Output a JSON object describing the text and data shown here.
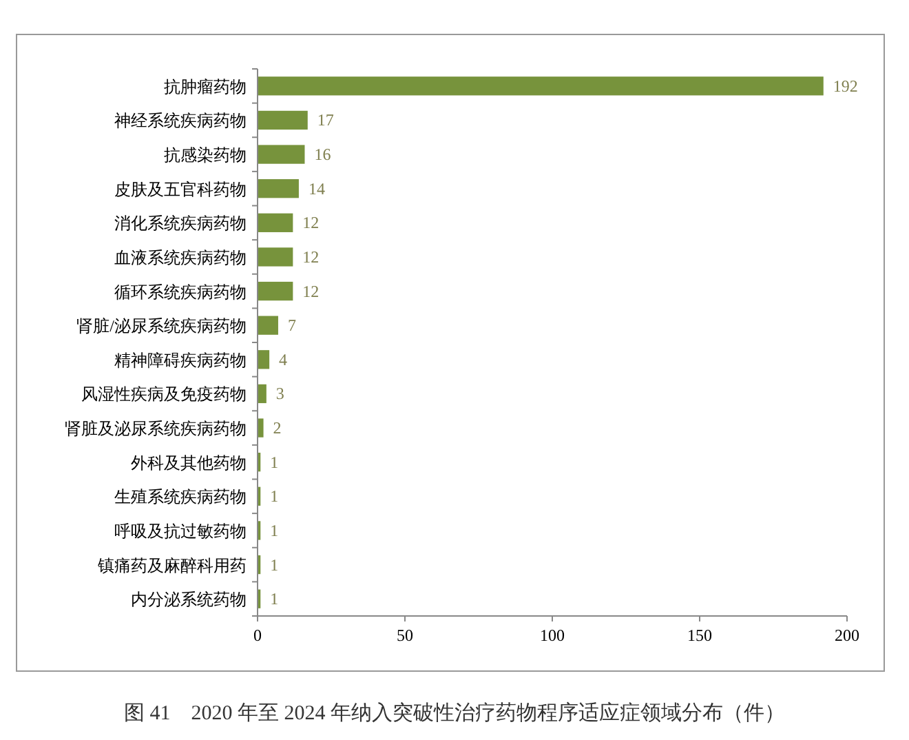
{
  "chart_data": {
    "type": "bar",
    "orientation": "horizontal",
    "title": "图 41　2020 年至 2024 年纳入突破性治疗药物程序适应症领域分布（件）",
    "categories": [
      "抗肿瘤药物",
      "神经系统疾病药物",
      "抗感染药物",
      "皮肤及五官科药物",
      "消化系统疾病药物",
      "血液系统疾病药物",
      "循环系统疾病药物",
      "肾脏/泌尿系统疾病药物",
      "精神障碍疾病药物",
      "风湿性疾病及免疫药物",
      "肾脏及泌尿系统疾病药物",
      "外科及其他药物",
      "生殖系统疾病药物",
      "呼吸及抗过敏药物",
      "镇痛药及麻醉科用药",
      "内分泌系统药物"
    ],
    "values": [
      192,
      17,
      16,
      14,
      12,
      12,
      12,
      7,
      4,
      3,
      2,
      1,
      1,
      1,
      1,
      1
    ],
    "color": "#77933c",
    "xlim": [
      0,
      200
    ],
    "xticks": [
      0,
      50,
      100,
      150,
      200
    ],
    "data_labels": true
  }
}
